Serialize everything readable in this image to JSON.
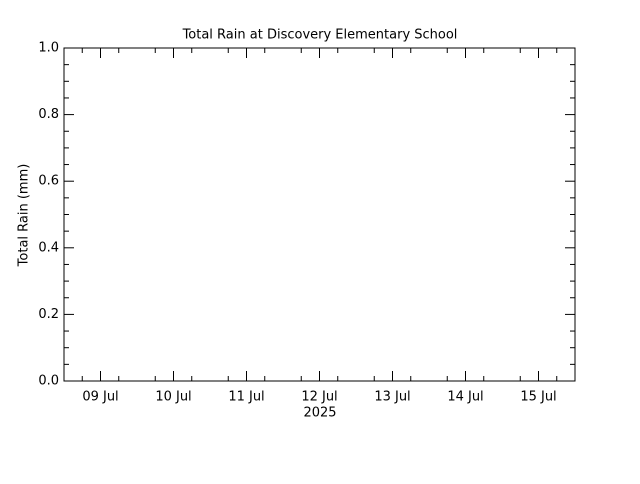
{
  "chart_data": {
    "type": "line",
    "title": "Total Rain at Discovery Elementary School",
    "y_label": "Total Rain (mm)",
    "categories": [
      "09 Jul",
      "10 Jul",
      "11 Jul",
      "12 Jul",
      "13 Jul",
      "14 Jul",
      "15 Jul"
    ],
    "x_sublabel": "2025",
    "series": [],
    "ylim": [
      0,
      1
    ],
    "yticks": [
      {
        "value": 0,
        "label": "0.0"
      },
      0.2,
      0.4,
      0.6,
      0.8,
      {
        "value": 1,
        "label": "1.0"
      }
    ]
  }
}
